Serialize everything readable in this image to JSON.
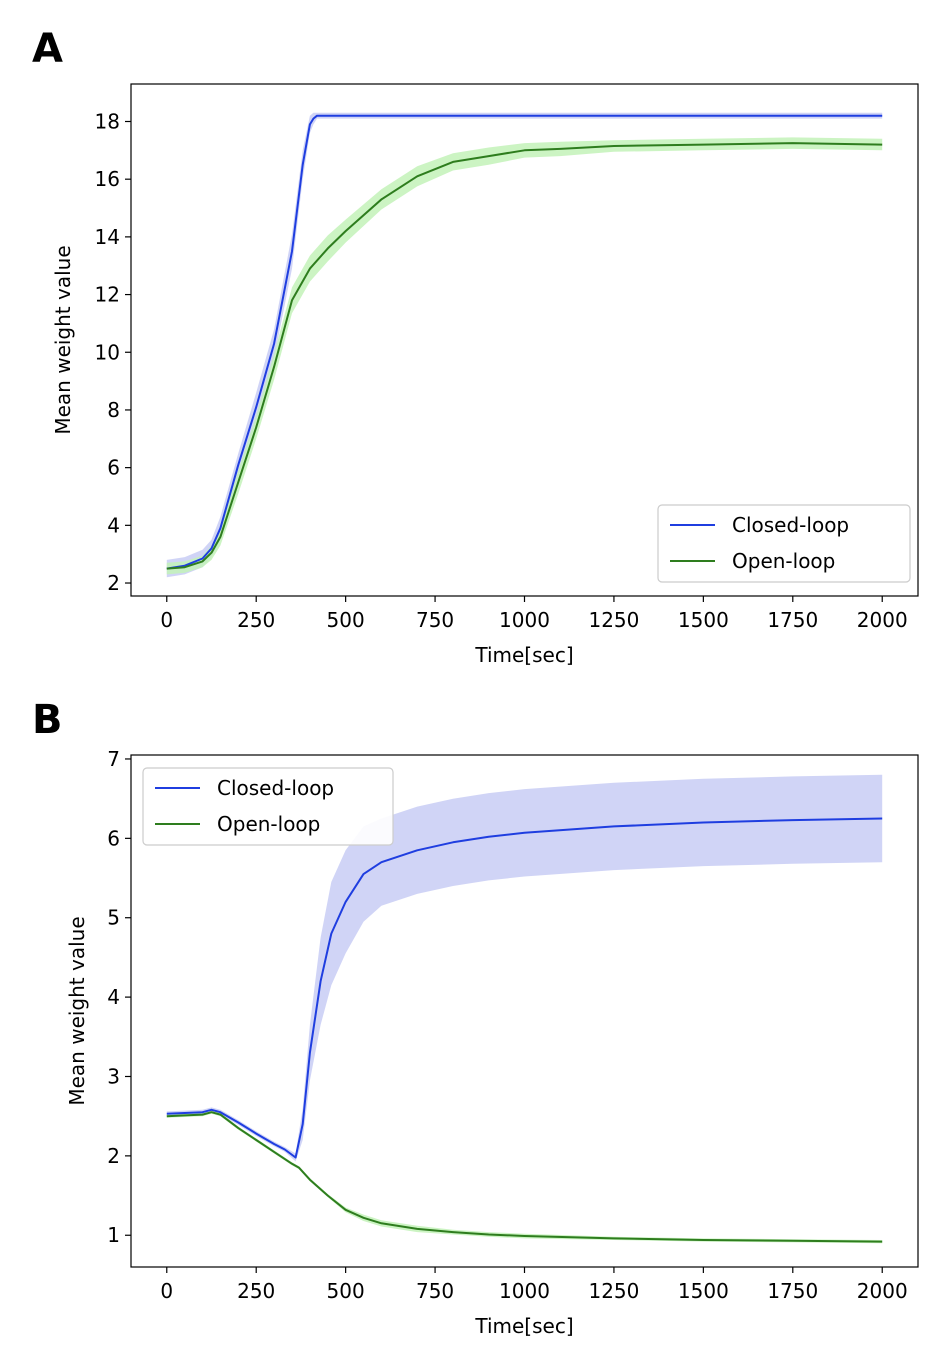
{
  "panels": [
    {
      "label": "A",
      "chart_data": {
        "type": "line",
        "title": "",
        "xlabel": "Time[sec]",
        "ylabel": "Mean weight value",
        "xlim": [
          -100,
          2100
        ],
        "ylim": [
          1.55,
          19.3
        ],
        "xticks": [
          0,
          250,
          500,
          750,
          1000,
          1250,
          1500,
          1750,
          2000
        ],
        "yticks": [
          2,
          4,
          6,
          8,
          10,
          12,
          14,
          16,
          18
        ],
        "legend_position": "lower-right",
        "series": [
          {
            "name": "Closed-loop",
            "color": "#1f3ee0",
            "band_color": "#c8cdf5",
            "x": [
              0,
              50,
              100,
              125,
              150,
              200,
              250,
              300,
              350,
              380,
              400,
              410,
              420,
              450,
              500,
              1000,
              1500,
              2000
            ],
            "y": [
              2.5,
              2.6,
              2.85,
              3.2,
              3.9,
              6.1,
              8.1,
              10.3,
              13.5,
              16.5,
              17.9,
              18.1,
              18.2,
              18.2,
              18.2,
              18.2,
              18.2,
              18.2
            ],
            "band": [
              0.3,
              0.3,
              0.3,
              0.3,
              0.4,
              0.4,
              0.5,
              0.5,
              0.6,
              0.5,
              0.3,
              0.2,
              0.1,
              0.1,
              0.1,
              0.1,
              0.1,
              0.1
            ]
          },
          {
            "name": "Open-loop",
            "color": "#2e7d1e",
            "band_color": "#c3f2b8",
            "x": [
              0,
              50,
              100,
              125,
              150,
              200,
              250,
              300,
              350,
              400,
              450,
              500,
              600,
              700,
              800,
              900,
              1000,
              1100,
              1250,
              1500,
              1750,
              2000
            ],
            "y": [
              2.5,
              2.55,
              2.75,
              3.05,
              3.6,
              5.5,
              7.4,
              9.5,
              11.8,
              12.9,
              13.6,
              14.2,
              15.3,
              16.1,
              16.6,
              16.8,
              17.0,
              17.05,
              17.15,
              17.2,
              17.25,
              17.2
            ],
            "band": [
              0.2,
              0.2,
              0.2,
              0.25,
              0.3,
              0.4,
              0.4,
              0.45,
              0.45,
              0.45,
              0.45,
              0.4,
              0.35,
              0.35,
              0.3,
              0.3,
              0.25,
              0.25,
              0.2,
              0.2,
              0.2,
              0.2
            ]
          }
        ]
      }
    },
    {
      "label": "B",
      "chart_data": {
        "type": "line",
        "title": "",
        "xlabel": "Time[sec]",
        "ylabel": "Mean weight value",
        "xlim": [
          -100,
          2100
        ],
        "ylim": [
          0.6,
          7.05
        ],
        "xticks": [
          0,
          250,
          500,
          750,
          1000,
          1250,
          1500,
          1750,
          2000
        ],
        "yticks": [
          1,
          2,
          3,
          4,
          5,
          6,
          7
        ],
        "legend_position": "top-left",
        "series": [
          {
            "name": "Closed-loop",
            "color": "#1f3ee0",
            "band_color": "#c8cdf5",
            "x": [
              0,
              50,
              100,
              125,
              150,
              200,
              250,
              300,
              330,
              360,
              380,
              400,
              430,
              460,
              500,
              550,
              600,
              700,
              800,
              900,
              1000,
              1250,
              1500,
              1750,
              2000
            ],
            "y": [
              2.53,
              2.54,
              2.55,
              2.58,
              2.55,
              2.42,
              2.28,
              2.15,
              2.08,
              1.98,
              2.4,
              3.3,
              4.2,
              4.8,
              5.2,
              5.55,
              5.7,
              5.85,
              5.95,
              6.02,
              6.07,
              6.15,
              6.2,
              6.23,
              6.25
            ],
            "band": [
              0.03,
              0.03,
              0.03,
              0.03,
              0.03,
              0.03,
              0.03,
              0.03,
              0.03,
              0.05,
              0.2,
              0.35,
              0.55,
              0.65,
              0.65,
              0.6,
              0.55,
              0.55,
              0.55,
              0.55,
              0.55,
              0.55,
              0.55,
              0.55,
              0.55
            ]
          },
          {
            "name": "Open-loop",
            "color": "#2e7d1e",
            "band_color": "#c3f2b8",
            "x": [
              0,
              50,
              100,
              125,
              150,
              200,
              250,
              300,
              350,
              370,
              400,
              450,
              500,
              550,
              600,
              700,
              800,
              900,
              1000,
              1250,
              1500,
              1750,
              2000
            ],
            "y": [
              2.5,
              2.51,
              2.52,
              2.55,
              2.52,
              2.35,
              2.2,
              2.05,
              1.9,
              1.85,
              1.7,
              1.5,
              1.32,
              1.22,
              1.15,
              1.08,
              1.04,
              1.01,
              0.99,
              0.96,
              0.94,
              0.93,
              0.92
            ],
            "band": [
              0.02,
              0.02,
              0.02,
              0.02,
              0.02,
              0.02,
              0.02,
              0.02,
              0.02,
              0.02,
              0.02,
              0.02,
              0.03,
              0.04,
              0.04,
              0.04,
              0.03,
              0.03,
              0.03,
              0.02,
              0.02,
              0.02,
              0.02
            ]
          }
        ]
      }
    }
  ]
}
